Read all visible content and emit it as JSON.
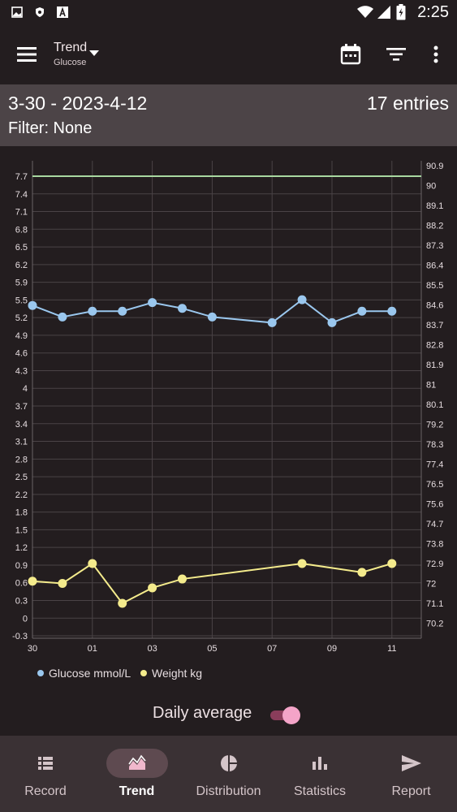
{
  "status_bar": {
    "time": "2:25"
  },
  "app_bar": {
    "title": "Trend",
    "subtitle": "Glucose"
  },
  "summary": {
    "date_range": "3-30 - 2023-4-12",
    "entries": "17 entries",
    "filter": "Filter: None"
  },
  "colors": {
    "glucose": "#9ac7ee",
    "weight": "#f4eb8c",
    "target_line": "#a8d8a0",
    "accent": "#f4a4c8"
  },
  "chart_data": {
    "type": "line",
    "x_ticks": [
      "30",
      "01",
      "03",
      "05",
      "07",
      "09",
      "11"
    ],
    "left_axis": {
      "ticks": [
        "7.7",
        "7.4",
        "7.1",
        "6.8",
        "6.5",
        "6.2",
        "5.9",
        "5.5",
        "5.2",
        "4.9",
        "4.6",
        "4.3",
        "4",
        "3.7",
        "3.4",
        "3.1",
        "2.8",
        "2.5",
        "2.2",
        "1.8",
        "1.5",
        "1.2",
        "0.9",
        "0.6",
        "0.3",
        "0",
        "-0.3"
      ],
      "ylim": [
        -0.3,
        7.7
      ]
    },
    "right_axis": {
      "ticks": [
        "90.9",
        "90",
        "89.1",
        "88.2",
        "87.3",
        "86.4",
        "85.5",
        "84.6",
        "83.7",
        "82.8",
        "81.9",
        "81",
        "80.1",
        "79.2",
        "78.3",
        "77.4",
        "76.5",
        "75.6",
        "74.7",
        "73.8",
        "72.9",
        "72",
        "71.1",
        "70.2"
      ]
    },
    "reference_line": {
      "axis": "left",
      "value": 7.7
    },
    "series": [
      {
        "name": "Glucose mmol/L",
        "axis": "left",
        "x": [
          "03-30",
          "03-31",
          "04-01",
          "04-02",
          "04-03",
          "04-04",
          "04-05",
          "04-07",
          "04-08",
          "04-09",
          "04-10",
          "04-11"
        ],
        "values": [
          5.45,
          5.25,
          5.35,
          5.35,
          5.5,
          5.4,
          5.25,
          5.15,
          5.55,
          5.15,
          5.35,
          5.35
        ]
      },
      {
        "name": "Weight kg",
        "axis": "right",
        "x": [
          "03-30",
          "03-31",
          "04-01",
          "04-02",
          "04-03",
          "04-04",
          "04-08",
          "04-10",
          "04-11"
        ],
        "values": [
          72.1,
          72.0,
          72.9,
          71.1,
          71.8,
          72.2,
          72.9,
          72.5,
          72.9
        ]
      }
    ]
  },
  "toggle": {
    "label": "Daily average",
    "on": true
  },
  "nav": [
    {
      "label": "Record",
      "icon": "list-icon"
    },
    {
      "label": "Trend",
      "icon": "trend-icon",
      "active": true
    },
    {
      "label": "Distribution",
      "icon": "pie-chart-icon"
    },
    {
      "label": "Statistics",
      "icon": "bar-chart-icon"
    },
    {
      "label": "Report",
      "icon": "send-icon"
    }
  ]
}
